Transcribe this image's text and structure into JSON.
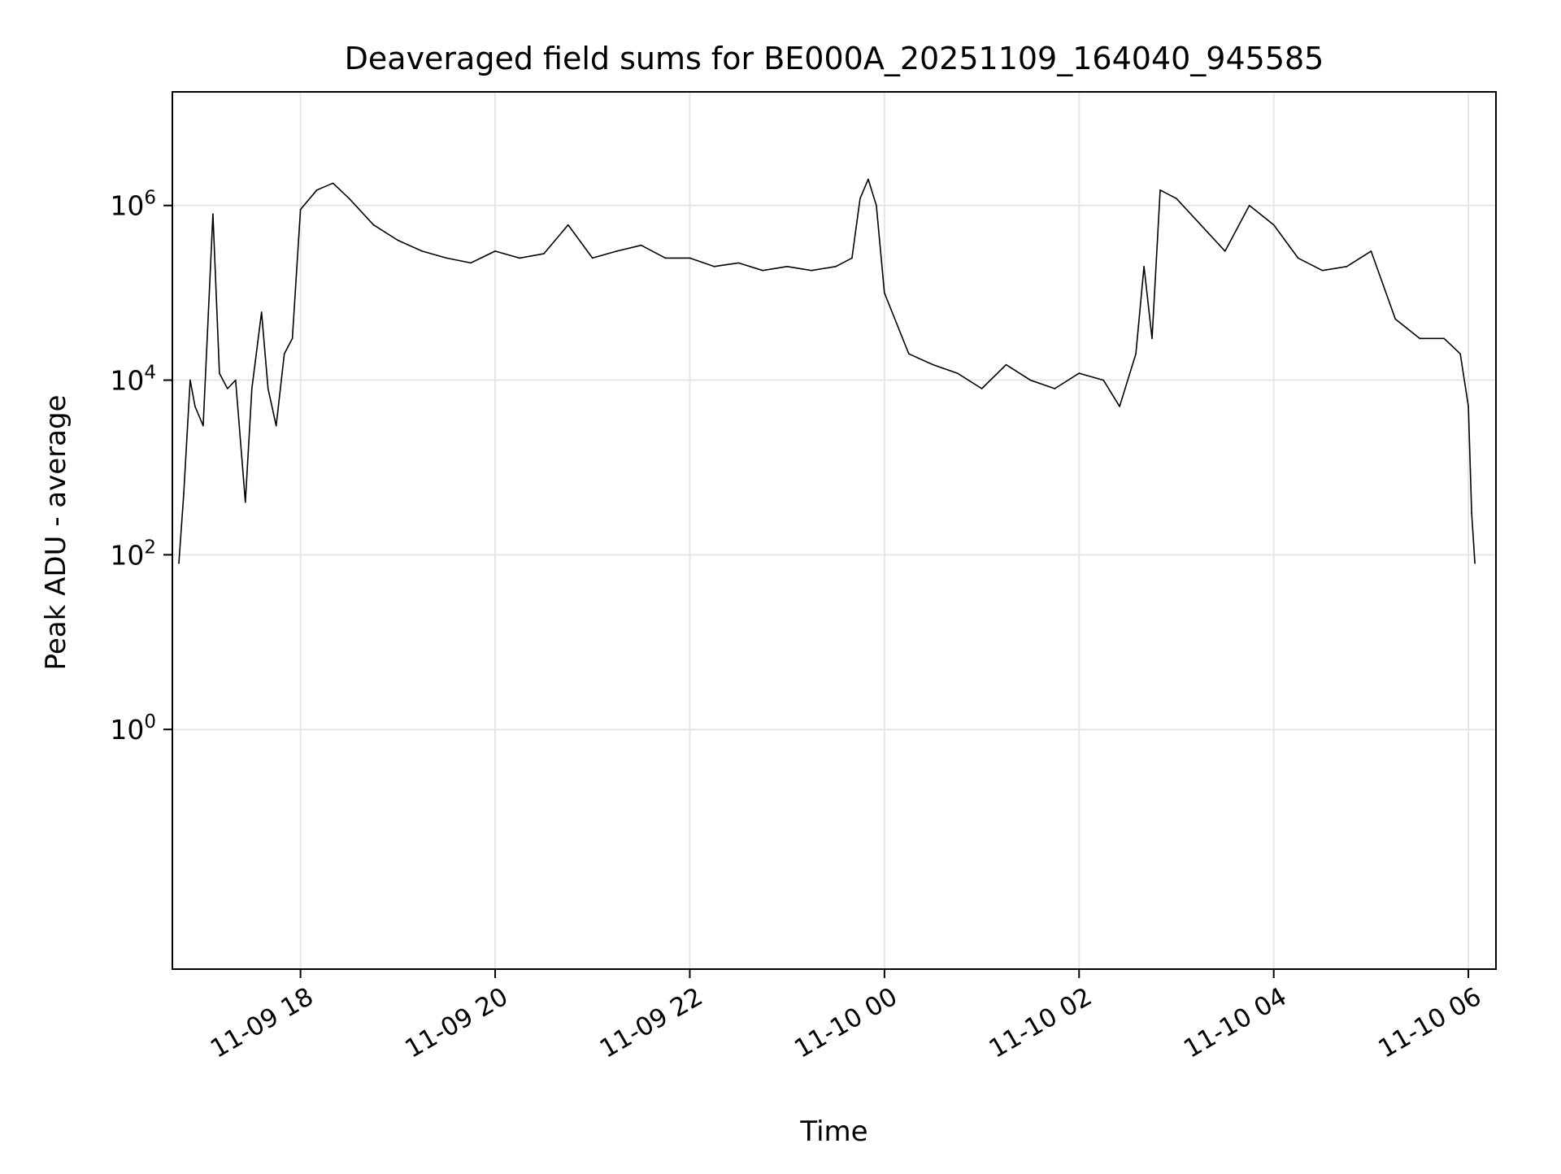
{
  "chart_data": {
    "type": "line",
    "title": "Deaveraged field sums for BE000A_20251109_164040_945585",
    "xlabel": "Time",
    "ylabel": "Peak ADU - average",
    "y_scale": "log",
    "ylim": [
      0.0018,
      20000000
    ],
    "xlim": [
      "2025-11-09 16:41",
      "2025-11-10 06:17"
    ],
    "grid": true,
    "line_color": "#000000",
    "grid_color": "#e6e6e6",
    "x_ticks": [
      {
        "value": "2025-11-09 18:00",
        "label": "11-09 18"
      },
      {
        "value": "2025-11-09 20:00",
        "label": "11-09 20"
      },
      {
        "value": "2025-11-09 22:00",
        "label": "11-09 22"
      },
      {
        "value": "2025-11-10 00:00",
        "label": "11-10 00"
      },
      {
        "value": "2025-11-10 02:00",
        "label": "11-10 02"
      },
      {
        "value": "2025-11-10 04:00",
        "label": "11-10 04"
      },
      {
        "value": "2025-11-10 06:00",
        "label": "11-10 06"
      }
    ],
    "y_ticks": [
      {
        "value": 1,
        "base": "10",
        "exp": "0"
      },
      {
        "value": 100,
        "base": "10",
        "exp": "2"
      },
      {
        "value": 10000,
        "base": "10",
        "exp": "4"
      },
      {
        "value": 1000000,
        "base": "10",
        "exp": "6"
      }
    ],
    "series": [
      {
        "x": [
          "2025-11-09 16:45",
          "2025-11-09 16:48",
          "2025-11-09 16:52",
          "2025-11-09 16:55",
          "2025-11-09 17:00",
          "2025-11-09 17:06",
          "2025-11-09 17:10",
          "2025-11-09 17:15",
          "2025-11-09 17:20",
          "2025-11-09 17:26",
          "2025-11-09 17:30",
          "2025-11-09 17:36",
          "2025-11-09 17:40",
          "2025-11-09 17:45",
          "2025-11-09 17:50",
          "2025-11-09 17:55",
          "2025-11-09 18:00",
          "2025-11-09 18:10",
          "2025-11-09 18:20",
          "2025-11-09 18:30",
          "2025-11-09 18:45",
          "2025-11-09 19:00",
          "2025-11-09 19:15",
          "2025-11-09 19:30",
          "2025-11-09 19:45",
          "2025-11-09 20:00",
          "2025-11-09 20:15",
          "2025-11-09 20:30",
          "2025-11-09 20:45",
          "2025-11-09 21:00",
          "2025-11-09 21:15",
          "2025-11-09 21:30",
          "2025-11-09 21:45",
          "2025-11-09 22:00",
          "2025-11-09 22:15",
          "2025-11-09 22:30",
          "2025-11-09 22:45",
          "2025-11-09 23:00",
          "2025-11-09 23:15",
          "2025-11-09 23:30",
          "2025-11-09 23:40",
          "2025-11-09 23:45",
          "2025-11-09 23:50",
          "2025-11-09 23:55",
          "2025-11-10 00:00",
          "2025-11-10 00:15",
          "2025-11-10 00:30",
          "2025-11-10 00:45",
          "2025-11-10 01:00",
          "2025-11-10 01:15",
          "2025-11-10 01:30",
          "2025-11-10 01:45",
          "2025-11-10 02:00",
          "2025-11-10 02:15",
          "2025-11-10 02:25",
          "2025-11-10 02:35",
          "2025-11-10 02:40",
          "2025-11-10 02:45",
          "2025-11-10 02:50",
          "2025-11-10 03:00",
          "2025-11-10 03:15",
          "2025-11-10 03:30",
          "2025-11-10 03:45",
          "2025-11-10 04:00",
          "2025-11-10 04:15",
          "2025-11-10 04:30",
          "2025-11-10 04:45",
          "2025-11-10 05:00",
          "2025-11-10 05:15",
          "2025-11-10 05:30",
          "2025-11-10 05:45",
          "2025-11-10 05:55",
          "2025-11-10 06:00",
          "2025-11-10 06:02",
          "2025-11-10 06:04"
        ],
        "values": [
          80,
          500,
          10000,
          5000,
          3000,
          800000,
          12000,
          8000,
          10000,
          400,
          8000,
          60000,
          8000,
          3000,
          20000,
          30000,
          900000,
          1500000,
          1800000,
          1200000,
          600000,
          400000,
          300000,
          250000,
          220000,
          300000,
          250000,
          280000,
          600000,
          250000,
          300000,
          350000,
          250000,
          250000,
          200000,
          220000,
          180000,
          200000,
          180000,
          200000,
          250000,
          1200000,
          2000000,
          1000000,
          100000,
          20000,
          15000,
          12000,
          8000,
          15000,
          10000,
          8000,
          12000,
          10000,
          5000,
          20000,
          200000,
          30000,
          1500000,
          1200000,
          600000,
          300000,
          1000000,
          600000,
          250000,
          180000,
          200000,
          300000,
          50000,
          30000,
          30000,
          20000,
          5000,
          300,
          80
        ]
      }
    ]
  }
}
